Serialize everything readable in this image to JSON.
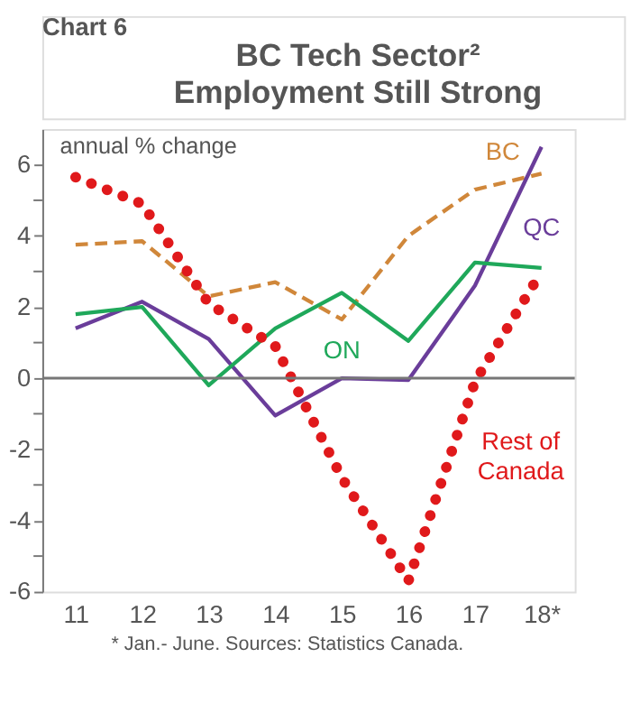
{
  "chart_data": {
    "type": "line",
    "title": "BC Tech Sector²\nEmployment Still Strong",
    "ylabel": "annual % change",
    "annotations": [
      "Chart 6",
      "* Jan.- June. Sources: Statistics Canada."
    ],
    "categories": [
      "11",
      "12",
      "13",
      "14",
      "15",
      "16",
      "17",
      "18*"
    ],
    "series": [
      {
        "name": "BC",
        "color": "#d0873a",
        "line_style": "dashed",
        "values": [
          3.75,
          3.85,
          2.3,
          2.7,
          1.65,
          4.0,
          5.3,
          5.75
        ]
      },
      {
        "name": "QC",
        "color": "#6a3d9a",
        "line_style": "solid",
        "values": [
          1.4,
          2.15,
          1.1,
          -1.05,
          0.0,
          -0.05,
          2.6,
          6.5
        ]
      },
      {
        "name": "ON",
        "color": "#1fa85a",
        "line_style": "solid",
        "values": [
          1.8,
          2.0,
          -0.2,
          1.4,
          2.4,
          1.05,
          3.25,
          3.1
        ]
      },
      {
        "name": "Rest of Canada",
        "color": "#e0191b",
        "line_style": "dotted",
        "values": [
          5.65,
          4.9,
          2.1,
          0.9,
          -2.8,
          -5.7,
          -0.1,
          3.0
        ]
      }
    ],
    "ylim": [
      -6,
      7
    ],
    "yticks": [
      -6,
      {
        "value": -5,
        "label": null
      },
      -4,
      {
        "value": -3,
        "label": null
      },
      -2,
      {
        "value": -1,
        "label": null
      },
      0,
      {
        "value": 1,
        "label": null
      },
      2,
      {
        "value": 3,
        "label": null
      },
      4,
      {
        "value": 5,
        "label": null
      },
      6
    ],
    "ref_lines": [
      {
        "axis": "y",
        "value": 0,
        "color": "#777777"
      }
    ],
    "grid": false,
    "marker": "none"
  }
}
